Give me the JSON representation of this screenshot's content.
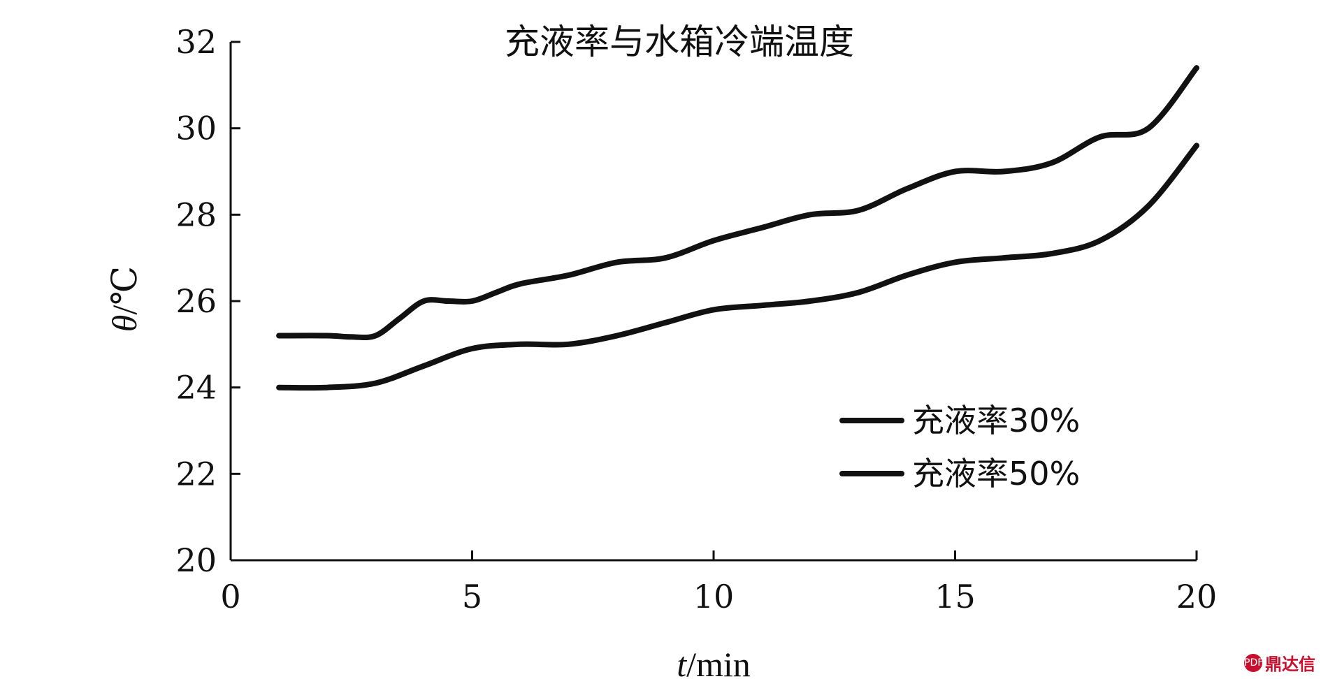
{
  "chart_data": {
    "type": "line",
    "title": "充液率与水箱冷端温度",
    "xlabel_var": "t",
    "xlabel_unit": "/min",
    "ylabel_var": "θ",
    "ylabel_unit": "/℃",
    "xlim": [
      0,
      20
    ],
    "ylim": [
      20,
      32
    ],
    "xticks": [
      0,
      5,
      10,
      15,
      20
    ],
    "yticks": [
      20,
      22,
      24,
      26,
      28,
      30,
      32
    ],
    "grid": false,
    "legend_position": "lower-right",
    "series": [
      {
        "name": "充液率30%",
        "x": [
          1,
          2,
          2.5,
          3,
          3.5,
          4,
          4.5,
          5,
          5.5,
          6,
          7,
          8,
          9,
          10,
          11,
          12,
          13,
          14,
          15,
          16,
          17,
          18,
          19,
          20
        ],
        "y": [
          25.2,
          25.2,
          25.17,
          25.2,
          25.6,
          26.0,
          26.0,
          26.0,
          26.2,
          26.4,
          26.6,
          26.9,
          27.0,
          27.4,
          27.7,
          28.0,
          28.1,
          28.6,
          29.0,
          29.0,
          29.2,
          29.8,
          30.0,
          31.4
        ]
      },
      {
        "name": "充液率50%",
        "x": [
          1,
          2,
          3,
          4,
          5,
          6,
          7,
          8,
          9,
          10,
          11,
          12,
          13,
          14,
          15,
          16,
          17,
          18,
          19,
          20
        ],
        "y": [
          24.0,
          24.0,
          24.1,
          24.5,
          24.9,
          25.0,
          25.0,
          25.2,
          25.5,
          25.8,
          25.9,
          26.0,
          26.2,
          26.6,
          26.9,
          27.0,
          27.1,
          27.4,
          28.2,
          29.6
        ]
      }
    ]
  },
  "watermark": {
    "logo": "PDF",
    "text": "鼎达信"
  }
}
